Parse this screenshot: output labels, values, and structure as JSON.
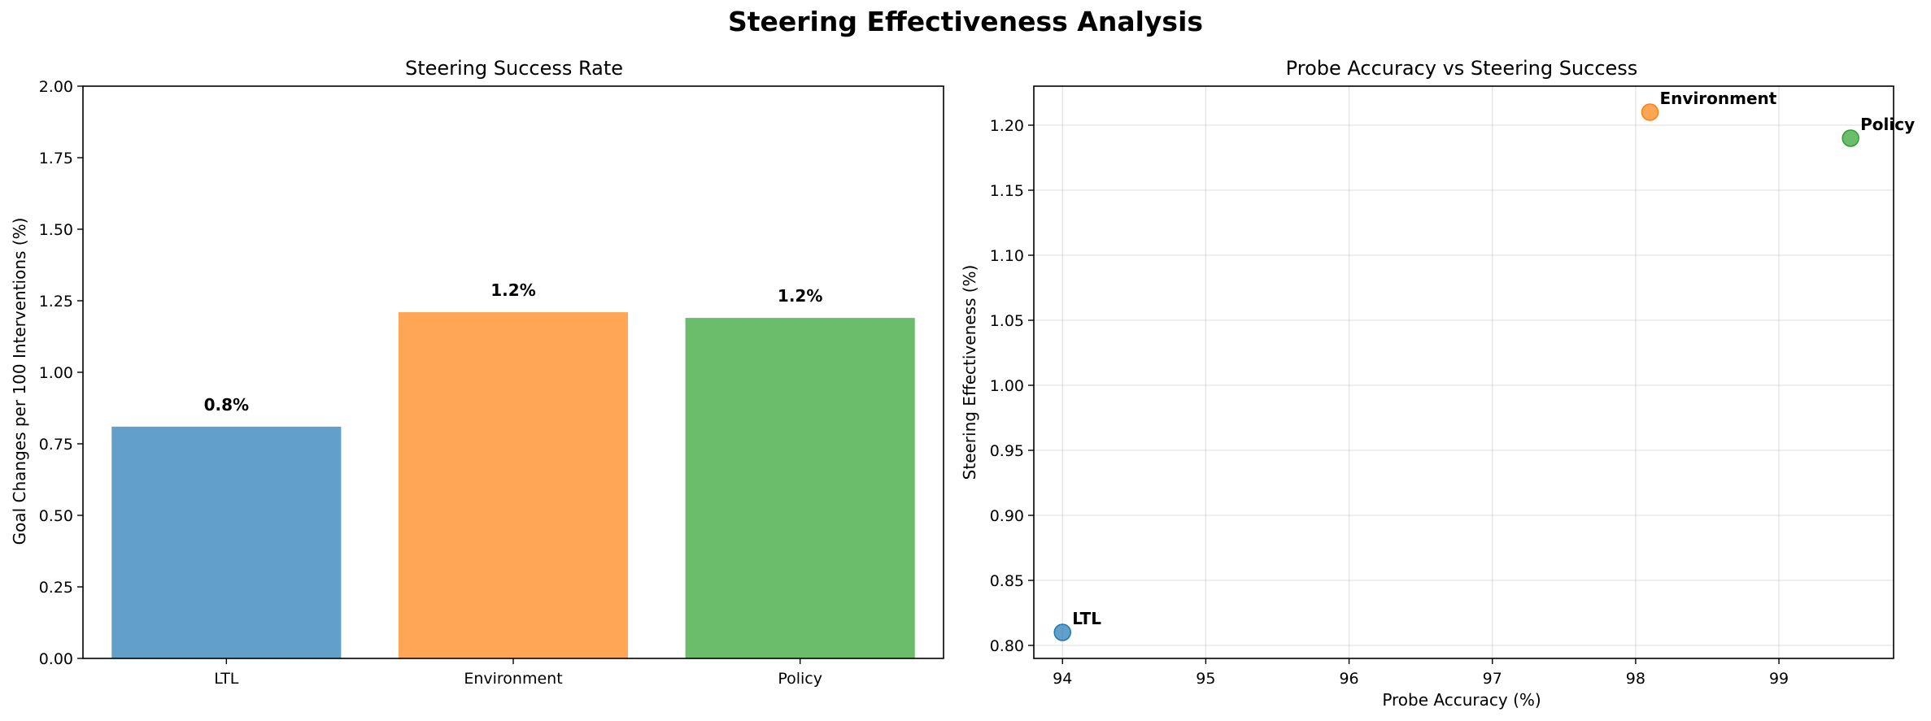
{
  "figure": {
    "suptitle": "Steering Effectiveness Analysis"
  },
  "chart_data": [
    {
      "type": "bar",
      "title": "Steering Success Rate",
      "xlabel": "",
      "ylabel": "Goal Changes per 100 Interventions (%)",
      "categories": [
        "LTL",
        "Environment",
        "Policy"
      ],
      "values": [
        0.81,
        1.21,
        1.19
      ],
      "data_labels": [
        "0.8%",
        "1.2%",
        "1.2%"
      ],
      "colors": [
        "#1f77b4",
        "#ff7f0e",
        "#2ca02c"
      ],
      "ylim": [
        0,
        2.0
      ],
      "yticks": [
        0,
        0.25,
        0.5,
        0.75,
        1.0,
        1.25,
        1.5,
        1.75,
        2.0
      ],
      "ytick_labels": [
        "0.00",
        "0.25",
        "0.50",
        "0.75",
        "1.00",
        "1.25",
        "1.50",
        "1.75",
        "2.00"
      ],
      "grid": false
    },
    {
      "type": "scatter",
      "title": "Probe Accuracy vs Steering Success",
      "xlabel": "Probe Accuracy (%)",
      "ylabel": "Steering Effectiveness (%)",
      "points": [
        {
          "label": "LTL",
          "x": 94.0,
          "y": 0.81,
          "color": "#1f77b4"
        },
        {
          "label": "Environment",
          "x": 98.1,
          "y": 1.21,
          "color": "#ff7f0e"
        },
        {
          "label": "Policy",
          "x": 99.5,
          "y": 1.19,
          "color": "#2ca02c"
        }
      ],
      "xlim": [
        93.8,
        99.8
      ],
      "ylim": [
        0.79,
        1.23
      ],
      "xticks": [
        94,
        95,
        96,
        97,
        98,
        99
      ],
      "xtick_labels": [
        "94",
        "95",
        "96",
        "97",
        "98",
        "99"
      ],
      "yticks": [
        0.8,
        0.85,
        0.9,
        0.95,
        1.0,
        1.05,
        1.1,
        1.15,
        1.2
      ],
      "ytick_labels": [
        "0.80",
        "0.85",
        "0.90",
        "0.95",
        "1.00",
        "1.05",
        "1.10",
        "1.15",
        "1.20"
      ],
      "grid": true
    }
  ]
}
